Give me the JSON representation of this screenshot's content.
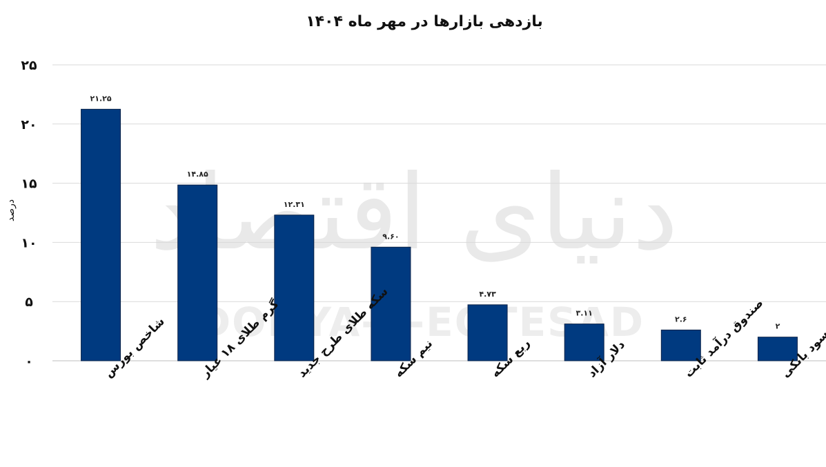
{
  "watermark": {
    "fa": "دنیای اقتصاد",
    "en": "DONYA-E-EQTESAD"
  },
  "chart_data": {
    "type": "bar",
    "title": "بازدهی بازارها در مهر ماه ۱۴۰۴",
    "ylabel": "درصد",
    "xlabel": "",
    "ylim": [
      0,
      25
    ],
    "yticks": [
      0,
      5,
      10,
      15,
      20,
      25
    ],
    "ytick_labels": [
      "۰",
      "۵",
      "۱۰",
      "۱۵",
      "۲۰",
      "۲۵"
    ],
    "grid": true,
    "bar_color": "#003a80",
    "categories": [
      "شاخص بورس",
      "گرم طلای ۱۸ عیار",
      "سکه طلای طرح جدید",
      "نیم سکه",
      "ربع سکه",
      "دلار آزاد",
      "صندوق درآمد ثابت",
      "نرخ سود بانکی"
    ],
    "values": [
      21.25,
      14.85,
      12.31,
      9.6,
      4.73,
      3.11,
      2.6,
      2
    ],
    "value_labels": [
      "۲۱.۲۵",
      "۱۴.۸۵",
      "۱۲.۳۱",
      "۹.۶۰",
      "۴.۷۳",
      "۳.۱۱",
      "۲.۶",
      "۲"
    ]
  }
}
